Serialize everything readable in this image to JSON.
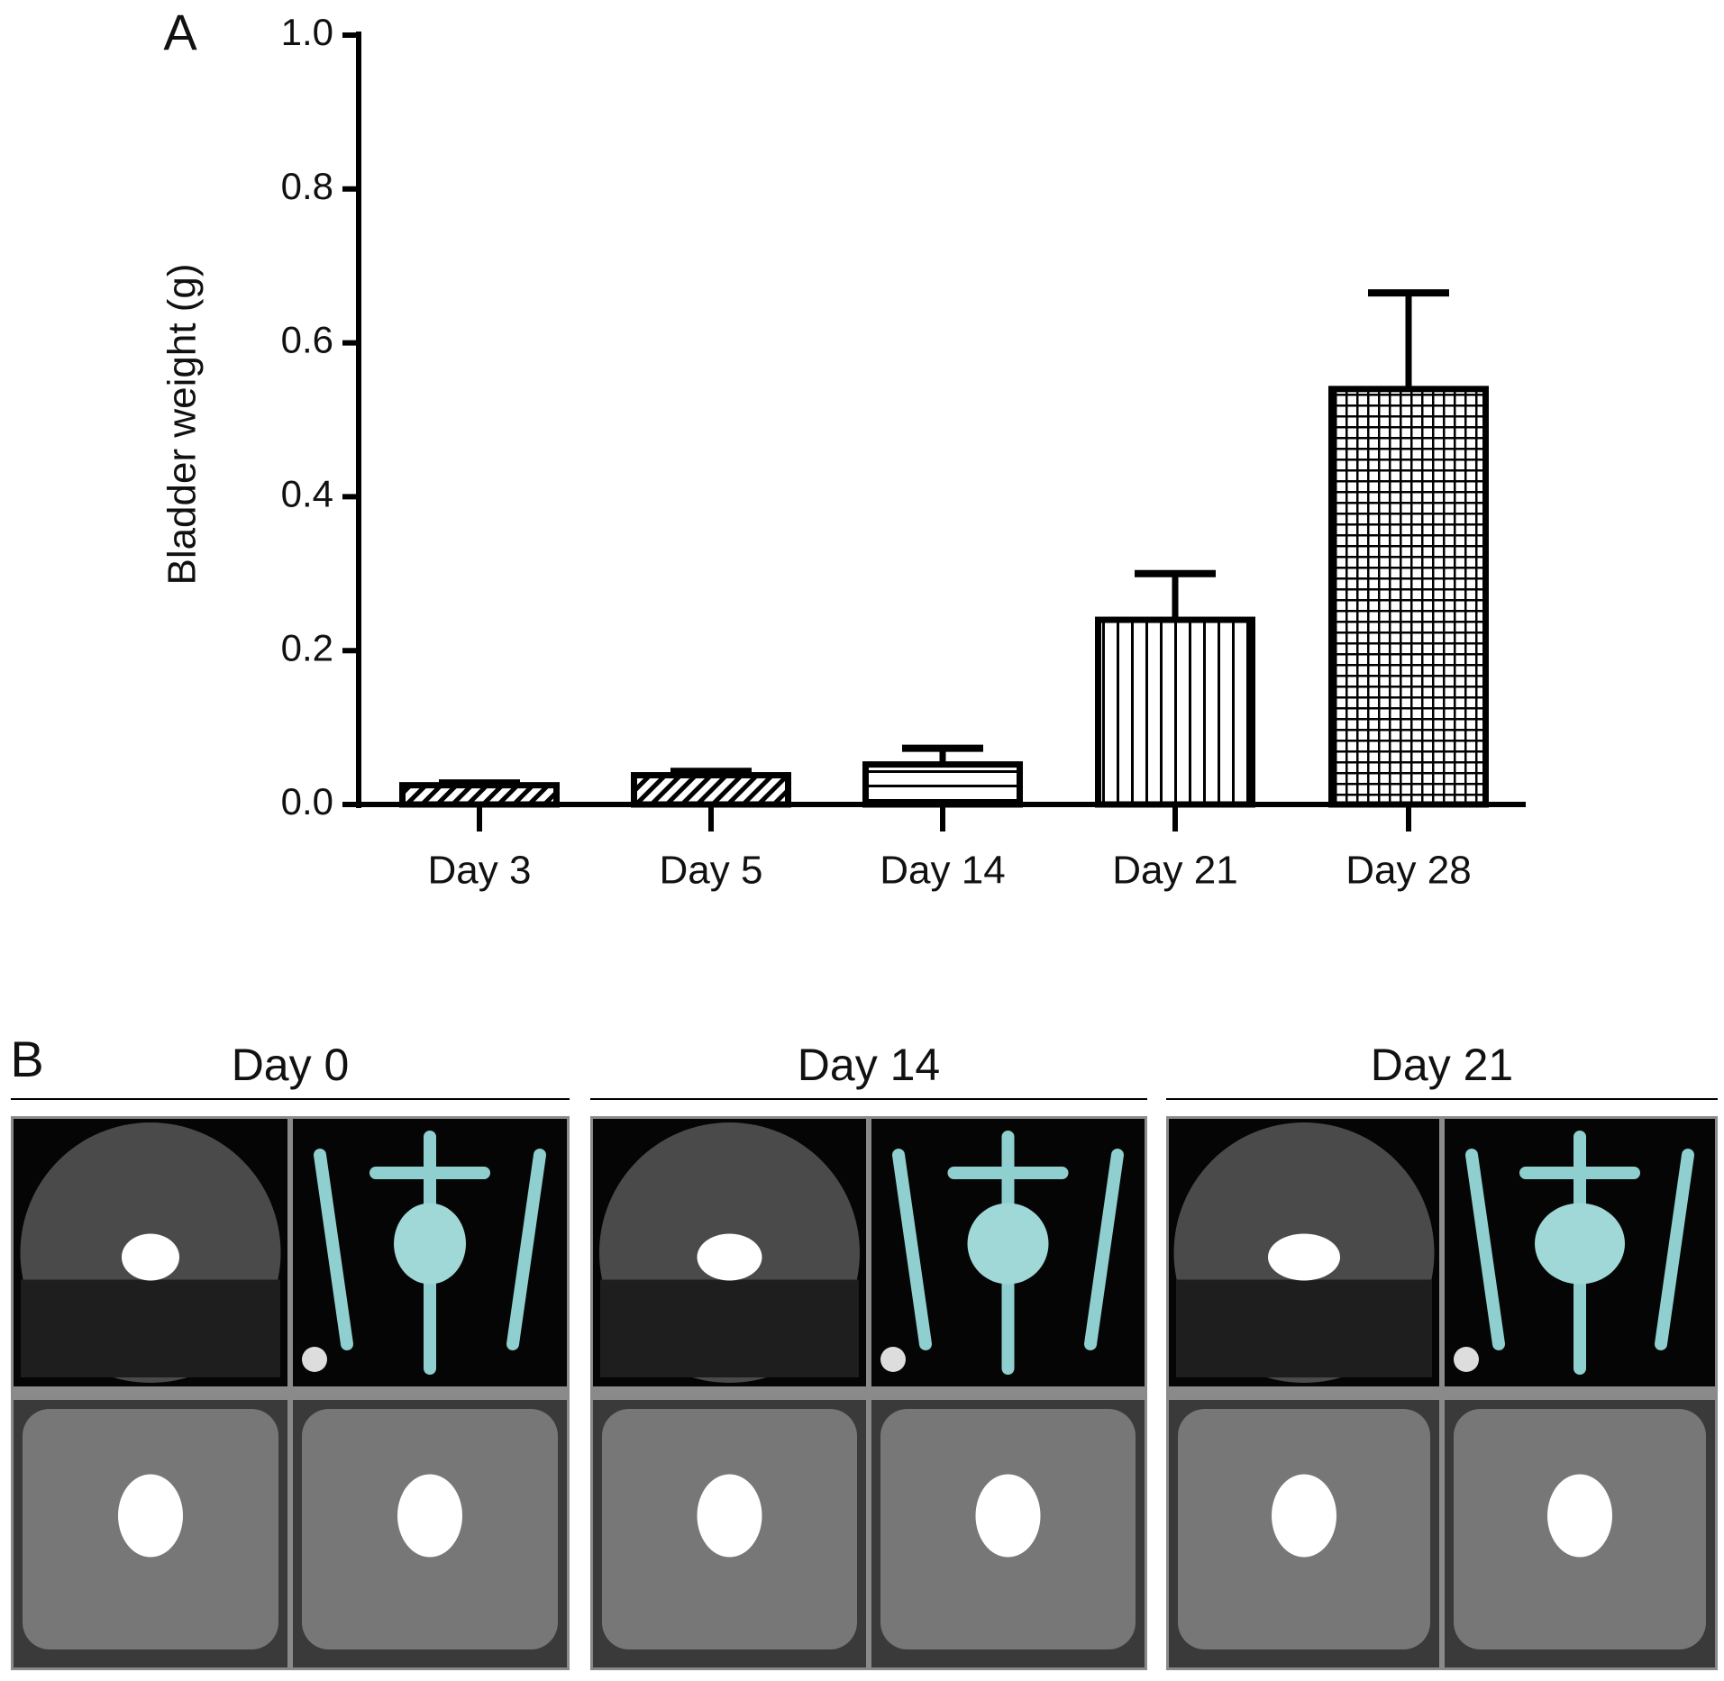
{
  "chart_data": {
    "type": "bar",
    "panel_label": "A",
    "ylabel": "Bladder weight (g)",
    "categories": [
      "Day 3",
      "Day 5",
      "Day 14",
      "Day 21",
      "Day 28"
    ],
    "values": [
      0.025,
      0.038,
      0.052,
      0.24,
      0.54
    ],
    "errors": [
      0.003,
      0.005,
      0.021,
      0.06,
      0.125
    ],
    "hatches": [
      "diagonal",
      "diagonal",
      "horizontal",
      "vertical",
      "grid"
    ],
    "color": "#000000",
    "ylim": [
      0,
      1
    ],
    "yticks": [
      {
        "value": 0,
        "label": "0.0"
      },
      {
        "value": 0.2,
        "label": "0.2"
      },
      {
        "value": 0.4,
        "label": "0.4"
      },
      {
        "value": 0.6,
        "label": "0.6"
      },
      {
        "value": 0.8,
        "label": "0.8"
      },
      {
        "value": 1,
        "label": "1.0"
      }
    ]
  },
  "panel_b": {
    "label": "B",
    "groups": [
      {
        "title": "Day 0"
      },
      {
        "title": "Day 14"
      },
      {
        "title": "Day 21"
      }
    ]
  }
}
